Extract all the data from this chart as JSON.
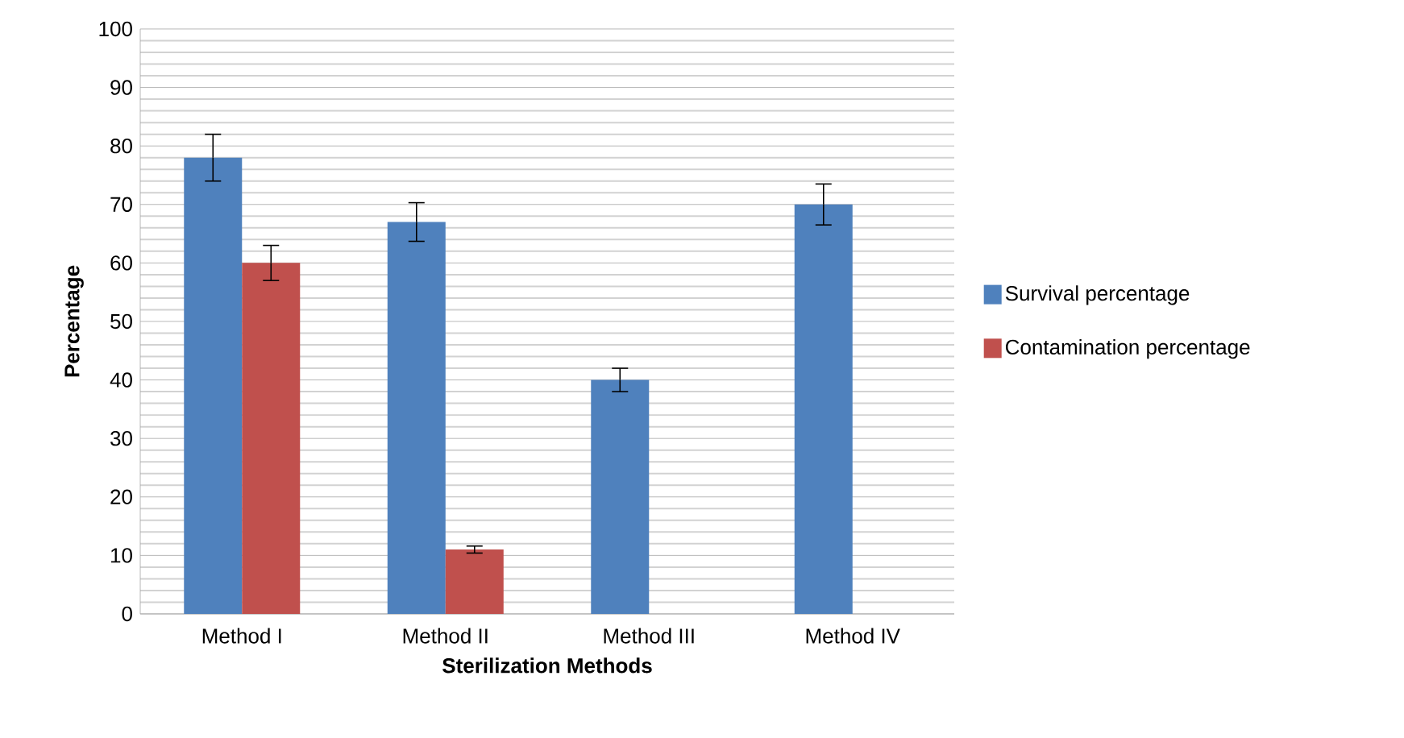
{
  "chart_data": {
    "type": "bar",
    "xlabel": "Sterilization Methods",
    "ylabel": "Percentage",
    "categories": [
      "Method I",
      "Method II",
      "Method III",
      "Method IV"
    ],
    "series": [
      {
        "name": "Survival percentage",
        "color": "#4f81bd",
        "values": [
          78,
          67,
          40,
          70
        ],
        "errors": [
          4,
          3.3,
          2,
          3.5
        ]
      },
      {
        "name": "Contamination percentage",
        "color": "#c0504d",
        "values": [
          60,
          11,
          null,
          null
        ],
        "errors": [
          3,
          0.6,
          null,
          null
        ]
      }
    ],
    "ylim": [
      0,
      100
    ],
    "yticks": [
      0,
      10,
      20,
      30,
      40,
      50,
      60,
      70,
      80,
      90,
      100
    ],
    "grid": "y",
    "legend": "right"
  }
}
